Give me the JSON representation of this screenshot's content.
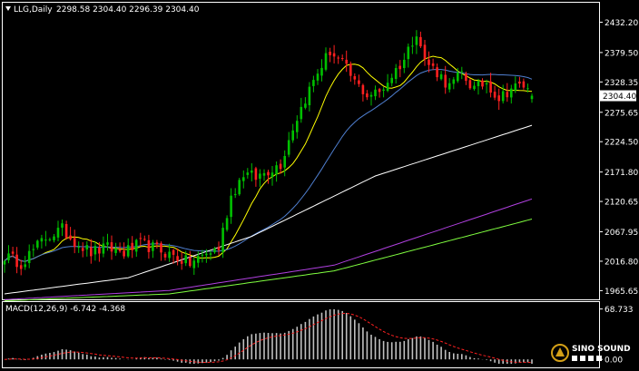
{
  "header": {
    "arrow_icon": "triangle-down-icon",
    "symbol_label": "LLG,Daily",
    "ohlc_text": "2298.58 2304.40 2296.39 2304.40"
  },
  "colors": {
    "background": "#000000",
    "frame": "#ffffff",
    "up_candle": "#00c000",
    "down_candle": "#ff2020",
    "ma_fast": "#ffff00",
    "ma_medium": "#4f7fd0",
    "ma_slow": "#ffffff",
    "ma_slower": "#b040e0",
    "ma_slowest": "#80ff40",
    "macd_hist": "#c0c0c0",
    "macd_signal": "#ff2020",
    "text": "#ffffff",
    "price_tag_bg": "#ffffff",
    "price_tag_text": "#000000"
  },
  "logo": {
    "name": "SINO SOUND",
    "icon": "sino-sound-logo-icon"
  },
  "chart_data": [
    {
      "type": "candlestick",
      "title": "LLG,Daily",
      "ohlc_last": {
        "open": 2298.58,
        "high": 2304.4,
        "low": 2296.39,
        "close": 2304.4
      },
      "last_price_tag": "2304.40",
      "y_ticks": [
        "2432.20",
        "2379.50",
        "2328.35",
        "2275.65",
        "2224.50",
        "2171.80",
        "2120.65",
        "2067.95",
        "2016.80",
        "1965.65"
      ],
      "ylim": [
        1960,
        2455
      ],
      "grid": false,
      "anchors": [
        [
          0,
          2026
        ],
        [
          4,
          2014
        ],
        [
          7,
          2036
        ],
        [
          10,
          2058
        ],
        [
          14,
          2072
        ],
        [
          17,
          2052
        ],
        [
          21,
          2032
        ],
        [
          25,
          2040
        ],
        [
          29,
          2032
        ],
        [
          33,
          2047
        ],
        [
          37,
          2038
        ],
        [
          41,
          2026
        ],
        [
          45,
          2013
        ],
        [
          49,
          2030
        ],
        [
          52,
          2040
        ],
        [
          55,
          2130
        ],
        [
          58,
          2170
        ],
        [
          61,
          2162
        ],
        [
          64,
          2175
        ],
        [
          67,
          2186
        ],
        [
          70,
          2250
        ],
        [
          73,
          2300
        ],
        [
          76,
          2345
        ],
        [
          79,
          2382
        ],
        [
          82,
          2360
        ],
        [
          85,
          2328
        ],
        [
          88,
          2306
        ],
        [
          91,
          2310
        ],
        [
          94,
          2340
        ],
        [
          97,
          2368
        ],
        [
          100,
          2418
        ],
        [
          102,
          2365
        ],
        [
          105,
          2346
        ],
        [
          108,
          2320
        ],
        [
          111,
          2343
        ],
        [
          114,
          2316
        ],
        [
          117,
          2328
        ],
        [
          120,
          2300
        ],
        [
          123,
          2318
        ],
        [
          126,
          2322
        ],
        [
          128,
          2304
        ]
      ],
      "moving_averages": [
        {
          "color_key": "ma_fast",
          "period": 10
        },
        {
          "color_key": "ma_medium",
          "period": 30
        },
        {
          "color_key": "ma_slow",
          "period": 60,
          "trend": [
            [
              0,
              1960
            ],
            [
              30,
              1988
            ],
            [
              60,
              2060
            ],
            [
              90,
              2165
            ],
            [
              128,
              2253
            ]
          ]
        },
        {
          "color_key": "ma_slower",
          "period": 120,
          "trend": [
            [
              0,
              1950
            ],
            [
              40,
              1966
            ],
            [
              80,
              2010
            ],
            [
              128,
              2125
            ]
          ]
        },
        {
          "color_key": "ma_slowest",
          "period": 200,
          "trend": [
            [
              0,
              1948
            ],
            [
              40,
              1960
            ],
            [
              80,
              2000
            ],
            [
              128,
              2090
            ]
          ]
        }
      ],
      "candle_count": 129
    },
    {
      "type": "bar",
      "title": "MACD(12,26,9) -6.742 -4.368",
      "label": "MACD(12,26,9)",
      "values_text": "-6.742 -4.368",
      "y_ticks": [
        "68.733",
        "0.00"
      ],
      "ylim": [
        -6,
        72
      ],
      "macd_last": -6.742,
      "signal_last": -4.368
    }
  ]
}
